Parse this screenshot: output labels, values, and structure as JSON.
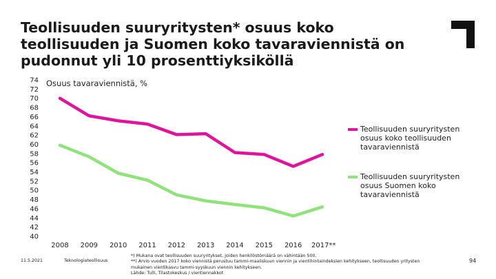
{
  "slide": {
    "title": "Teollisuuden suuryritysten* osuus koko teollisuuden ja Suomen koko tavaraviennistä on pudonnut yli 10 prosenttiyksiköllä",
    "date": "11.5.2021",
    "organization": "Teknologiateollisuus",
    "page_number": "94",
    "footnotes": [
      "*) Mukana ovat teollisuuden suuryritykset, joiden henkilöstömäärä on vähintään 500.",
      "**) Arvio vuoden 2017 koko viennistä perustuu tammi-maaliskuun viennin ja vientihintaindeksien kehitykseen, teollisuuden yritysten",
      "mukainen vientikasvu tammi-syyskuun viennin kehitykseen.",
      "Lähde: Tulli, Tilastokeskus / vientiennakkot"
    ],
    "logo_icon": "corner-bracket-logo-icon"
  },
  "chart_data": {
    "type": "line",
    "title": "",
    "subtitle": "Osuus tavaraviennistä, %",
    "xlabel": "",
    "ylabel": "",
    "categories": [
      "2008",
      "2009",
      "2010",
      "2011",
      "2012",
      "2013",
      "2014",
      "2015",
      "2016",
      "2017**"
    ],
    "ylim": [
      40,
      74
    ],
    "yticks": [
      74,
      72,
      70,
      68,
      66,
      64,
      62,
      60,
      58,
      56,
      54,
      52,
      50,
      48,
      46,
      44,
      42,
      40
    ],
    "grid": false,
    "legend_position": "right",
    "series": [
      {
        "name": "Teollisuuden suuryritysten osuus koko teollisuuden tavaraviennistä",
        "color": "#e0139e",
        "values": [
          70.0,
          66.2,
          65.1,
          64.4,
          62.1,
          62.3,
          58.2,
          57.8,
          55.2,
          57.8
        ]
      },
      {
        "name": "Teollisuuden suuryritysten osuus Suomen koko tavaraviennistä",
        "color": "#8fe37a",
        "values": [
          59.8,
          57.3,
          53.7,
          52.2,
          49.0,
          47.7,
          46.9,
          46.2,
          44.4,
          46.4
        ]
      }
    ]
  }
}
